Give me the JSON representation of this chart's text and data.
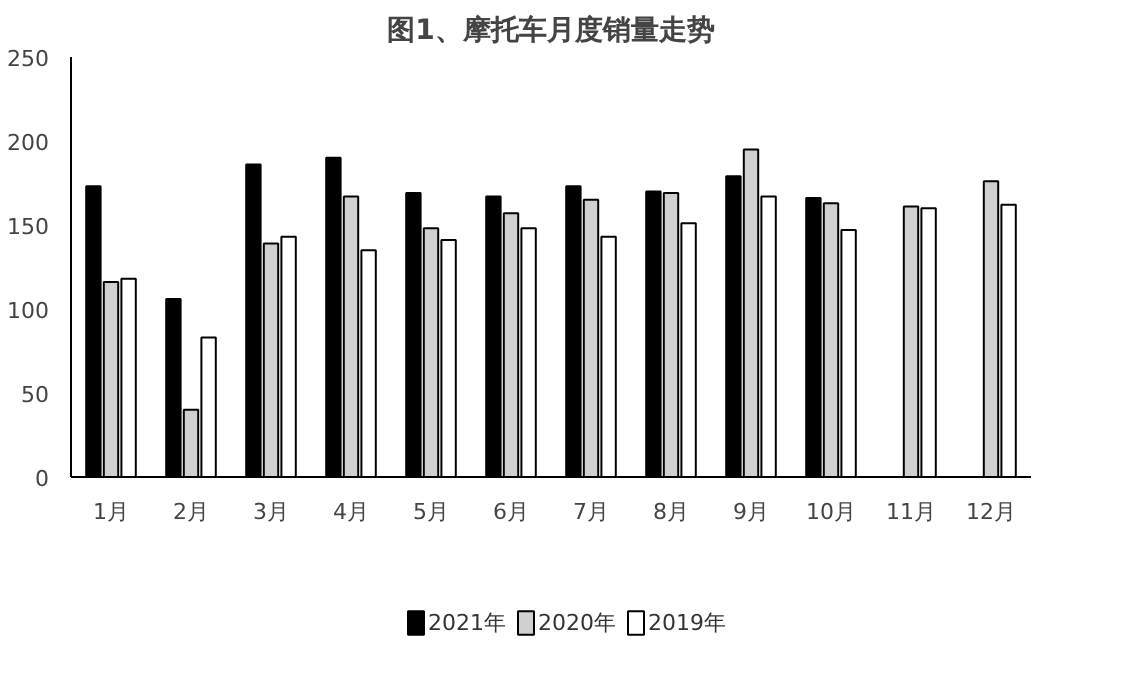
{
  "chart_data": {
    "type": "bar",
    "title": "图1、摩托车月度销量走势",
    "categories": [
      "1月",
      "2月",
      "3月",
      "4月",
      "5月",
      "6月",
      "7月",
      "8月",
      "9月",
      "10月",
      "11月",
      "12月"
    ],
    "series": [
      {
        "name": "2021年",
        "color": "#000000",
        "values": [
          173,
          106,
          186,
          190,
          169,
          167,
          173,
          170,
          179,
          166,
          null,
          null
        ]
      },
      {
        "name": "2020年",
        "color": "#d0d0d0",
        "values": [
          116,
          40,
          139,
          167,
          148,
          157,
          165,
          169,
          195,
          163,
          161,
          176
        ]
      },
      {
        "name": "2019年",
        "color": "#ffffff",
        "values": [
          118,
          83,
          143,
          135,
          141,
          148,
          143,
          151,
          167,
          147,
          160,
          162
        ]
      }
    ],
    "ylim": [
      0,
      250
    ],
    "yticks": [
      0,
      50,
      100,
      150,
      200,
      250
    ],
    "grid": false,
    "legend": "bottom"
  }
}
